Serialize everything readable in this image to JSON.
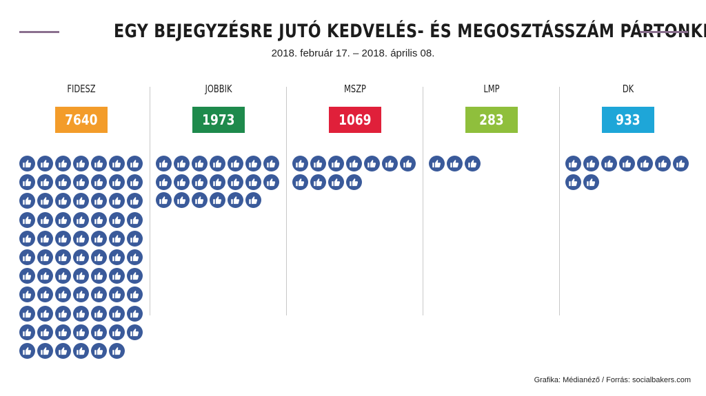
{
  "header": {
    "title": "EGY BEJEGYZÉSRE JUTÓ KEDVELÉS- ÉS MEGOSZTÁSSZÁM PÁRTONKÉNT",
    "subtitle": "2018. február 17. – 2018. április 08."
  },
  "chart_data": {
    "type": "bar",
    "title": "EGY BEJEGYZÉSRE JUTÓ KEDVELÉS- ÉS MEGOSZTÁSSZÁM PÁRTONKÉNT",
    "subtitle": "2018. február 17. – 2018. április 08.",
    "categories": [
      "FIDESZ",
      "JOBBIK",
      "MSZP",
      "LMP",
      "DK"
    ],
    "values": [
      7640,
      1973,
      1069,
      283,
      933
    ],
    "value_labels": [
      "7640",
      "1973",
      "1069",
      "283",
      "933"
    ],
    "icon_counts": [
      76,
      20,
      11,
      3,
      9
    ],
    "colors": [
      "#f39c2a",
      "#1e8a4c",
      "#e0203a",
      "#8fbf3c",
      "#1ea6d8"
    ],
    "icon": "thumbs-up-icon",
    "icon_color": "#3a5a9a"
  },
  "footer": {
    "credit": "Grafika: Médianéző / Forrás: socialbakers.com"
  }
}
